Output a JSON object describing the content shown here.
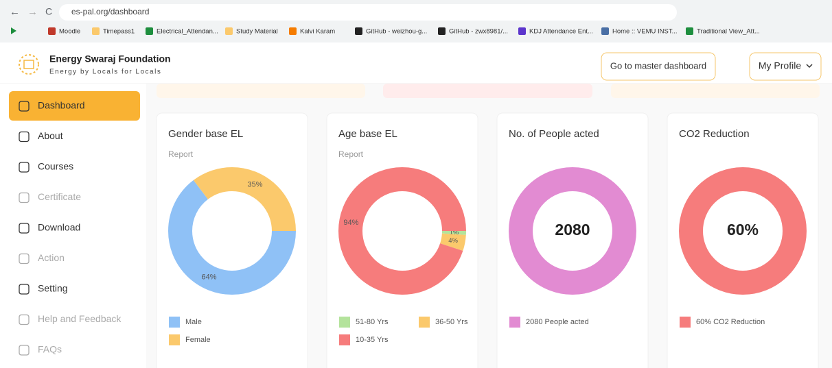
{
  "browser": {
    "url": "es-pal.org/dashboard",
    "bookmarks": [
      "Moodle",
      "Timepass1",
      "Electrical_Attendan...",
      "Study Material",
      "Kalvi Karam",
      "GitHub - weizhou-g...",
      "GitHub - zwx8981/...",
      "KDJ Attendance Ent...",
      "Home :: VEMU INST...",
      "Traditional View_Att..."
    ]
  },
  "header": {
    "title": "Energy Swaraj Foundation",
    "tagline": "Energy by Locals for Locals",
    "buttons": [
      "Go to master dashboard",
      "My Profile"
    ]
  },
  "sidebar": {
    "active": 0,
    "items": [
      {
        "label": "Dashboard",
        "enabled": true
      },
      {
        "label": "About",
        "enabled": true
      },
      {
        "label": "Courses",
        "enabled": true
      },
      {
        "label": "Certificate",
        "enabled": false
      },
      {
        "label": "Download",
        "enabled": true
      },
      {
        "label": "Action",
        "enabled": false
      },
      {
        "label": "Setting",
        "enabled": true
      },
      {
        "label": "Help and Feedback",
        "enabled": false
      },
      {
        "label": "FAQs",
        "enabled": false
      }
    ]
  },
  "chart_data": [
    {
      "type": "doughnut",
      "title": "Gender base EL",
      "subtitle": "Report",
      "categories": [
        "Male",
        "Female"
      ],
      "values": [
        64,
        35
      ],
      "value_labels": [
        "64%",
        "35%"
      ],
      "colors": [
        "#8fc1f6",
        "#fbc96c"
      ],
      "label_position": "arc"
    },
    {
      "type": "doughnut",
      "title": "Age base EL",
      "subtitle": "Report",
      "categories": [
        "51-80 Yrs",
        "36-50 Yrs",
        "10-35 Yrs"
      ],
      "values": [
        1,
        4,
        94
      ],
      "value_labels": [
        "1%",
        "4%",
        "94%"
      ],
      "colors": [
        "#b4e39c",
        "#fbc96c",
        "#f67c7c"
      ],
      "label_position": "arc"
    },
    {
      "type": "doughnut",
      "title": "No. of People acted",
      "categories": [
        "2080 People acted"
      ],
      "values": [
        2080
      ],
      "colors": [
        "#e28bd2"
      ],
      "label_position": "center"
    },
    {
      "type": "doughnut",
      "title": "CO2 Reduction",
      "categories": [
        "60% CO2 Reduction"
      ],
      "values": [
        60
      ],
      "value_labels": [
        "60%"
      ],
      "colors": [
        "#f67c7c"
      ],
      "label_position": "center"
    }
  ]
}
